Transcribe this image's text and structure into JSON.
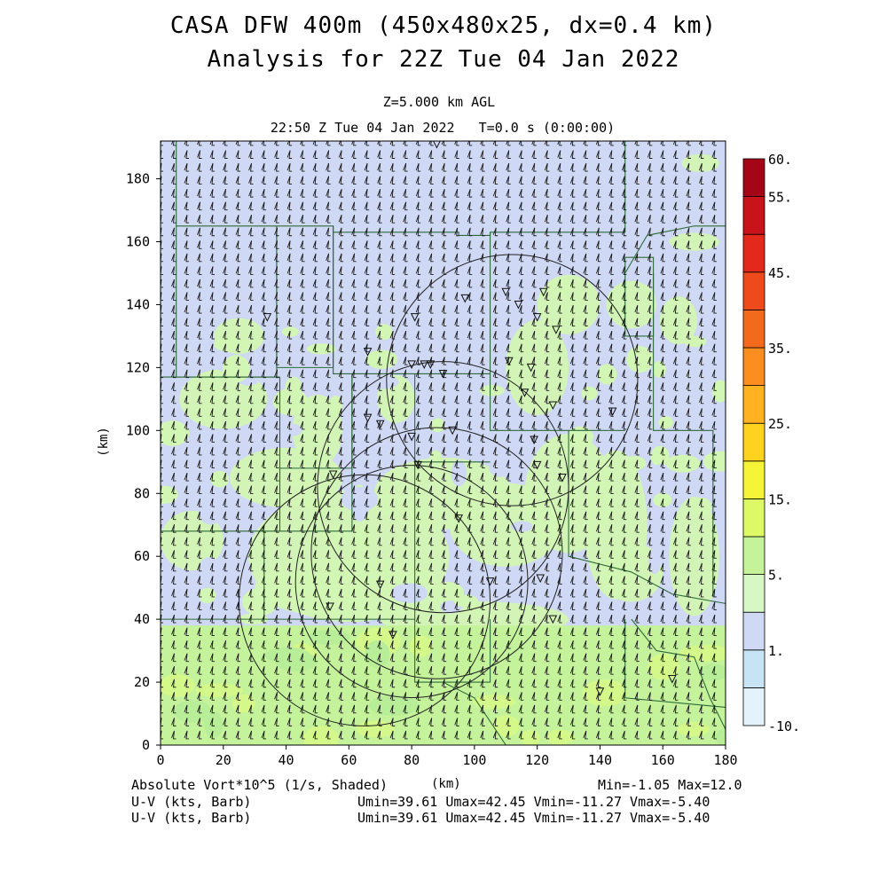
{
  "header": {
    "title_line1": "CASA DFW 400m (450x480x25, dx=0.4 km)",
    "title_line2": "Analysis for 22Z Tue 04 Jan 2022",
    "level": "Z=5.000 km AGL",
    "time": "22:50 Z Tue 04 Jan 2022   T=0.0 s (0:00:00)"
  },
  "footer": {
    "var_label": "Absolute Vort*10^5 (1/s, Shaded)",
    "xunit": "(km)",
    "minmax": "Min=-1.05 Max=12.0",
    "uv_label_1": "U-V (kts, Barb)",
    "uv_label_2": "U-V (kts, Barb)",
    "uv_range_1": "Umin=39.61 Umax=42.45 Vmin=-11.27 Vmax=-5.40",
    "uv_range_2": "Umin=39.61 Umax=42.45 Vmin=-11.27 Vmax=-5.40"
  },
  "chart_data": {
    "type": "heatmap",
    "title": "CASA DFW 400m (450x480x25, dx=0.4 km)",
    "subtitle": "Analysis for 22Z Tue 04 Jan 2022",
    "xlabel": "(km)",
    "ylabel": "(km)",
    "xlim": [
      0,
      180
    ],
    "ylim": [
      0,
      192
    ],
    "xticks": [
      0,
      20,
      40,
      60,
      80,
      100,
      120,
      140,
      160,
      180
    ],
    "yticks": [
      0,
      20,
      40,
      60,
      80,
      100,
      120,
      140,
      160,
      180
    ],
    "colorbar": {
      "tick_labels": [
        "-10.",
        "1.",
        "5.",
        "15.",
        "25.",
        "35.",
        "45.",
        "55.",
        "60."
      ],
      "bins": [
        {
          "color": "#e4f3fb"
        },
        {
          "color": "#c7e4f4"
        },
        {
          "color": "#cfd8f4"
        },
        {
          "color": "#d7f7c4"
        },
        {
          "color": "#c4f399"
        },
        {
          "color": "#ddfa66"
        },
        {
          "color": "#f6f437"
        },
        {
          "color": "#ffd21f"
        },
        {
          "color": "#ffb21f"
        },
        {
          "color": "#fb8e1e"
        },
        {
          "color": "#f46a1c"
        },
        {
          "color": "#ef4a1c"
        },
        {
          "color": "#e3291b"
        },
        {
          "color": "#c8131a"
        },
        {
          "color": "#a40618"
        }
      ]
    },
    "field_values": {
      "lavender_region": "1 to 5",
      "light_green_region": "5 to 10",
      "yellow_green_band_y_km": [
        0,
        38
      ],
      "vort_min": -1.05,
      "vort_max": 12.0
    },
    "wind": {
      "units": "kts",
      "u_range": [
        39.61,
        42.45
      ],
      "v_range": [
        -11.27,
        -5.4
      ]
    },
    "radar_sites_km": [
      {
        "x": 88,
        "y": 100
      },
      {
        "x": 55,
        "y": 86
      },
      {
        "x": 68,
        "y": 126
      },
      {
        "x": 112,
        "y": 155
      }
    ],
    "range_rings_km": [
      {
        "cx": 88,
        "cy": 61,
        "r": 40
      },
      {
        "cx": 80,
        "cy": 52,
        "r": 37
      },
      {
        "cx": 65,
        "cy": 46,
        "r": 40
      },
      {
        "cx": 112,
        "cy": 116,
        "r": 40
      },
      {
        "cx": 90,
        "cy": 82,
        "r": 40
      }
    ],
    "markers_km": [
      {
        "x": 88,
        "y": 191
      },
      {
        "x": 34,
        "y": 136
      },
      {
        "x": 81,
        "y": 136
      },
      {
        "x": 97,
        "y": 142
      },
      {
        "x": 110,
        "y": 144
      },
      {
        "x": 114,
        "y": 140
      },
      {
        "x": 122,
        "y": 144
      },
      {
        "x": 120,
        "y": 136
      },
      {
        "x": 126,
        "y": 132
      },
      {
        "x": 66,
        "y": 125
      },
      {
        "x": 80,
        "y": 121
      },
      {
        "x": 84,
        "y": 121
      },
      {
        "x": 86,
        "y": 121
      },
      {
        "x": 90,
        "y": 118
      },
      {
        "x": 111,
        "y": 122
      },
      {
        "x": 118,
        "y": 120
      },
      {
        "x": 116,
        "y": 112
      },
      {
        "x": 125,
        "y": 108
      },
      {
        "x": 66,
        "y": 104
      },
      {
        "x": 70,
        "y": 102
      },
      {
        "x": 80,
        "y": 98
      },
      {
        "x": 93,
        "y": 100
      },
      {
        "x": 119,
        "y": 97
      },
      {
        "x": 120,
        "y": 89
      },
      {
        "x": 82,
        "y": 89
      },
      {
        "x": 55,
        "y": 86
      },
      {
        "x": 128,
        "y": 85
      },
      {
        "x": 144,
        "y": 106
      },
      {
        "x": 95,
        "y": 72
      },
      {
        "x": 105,
        "y": 52
      },
      {
        "x": 121,
        "y": 53
      },
      {
        "x": 70,
        "y": 51
      },
      {
        "x": 54,
        "y": 44
      },
      {
        "x": 125,
        "y": 40
      },
      {
        "x": 74,
        "y": 35
      },
      {
        "x": 140,
        "y": 17
      },
      {
        "x": 163,
        "y": 21
      }
    ]
  }
}
